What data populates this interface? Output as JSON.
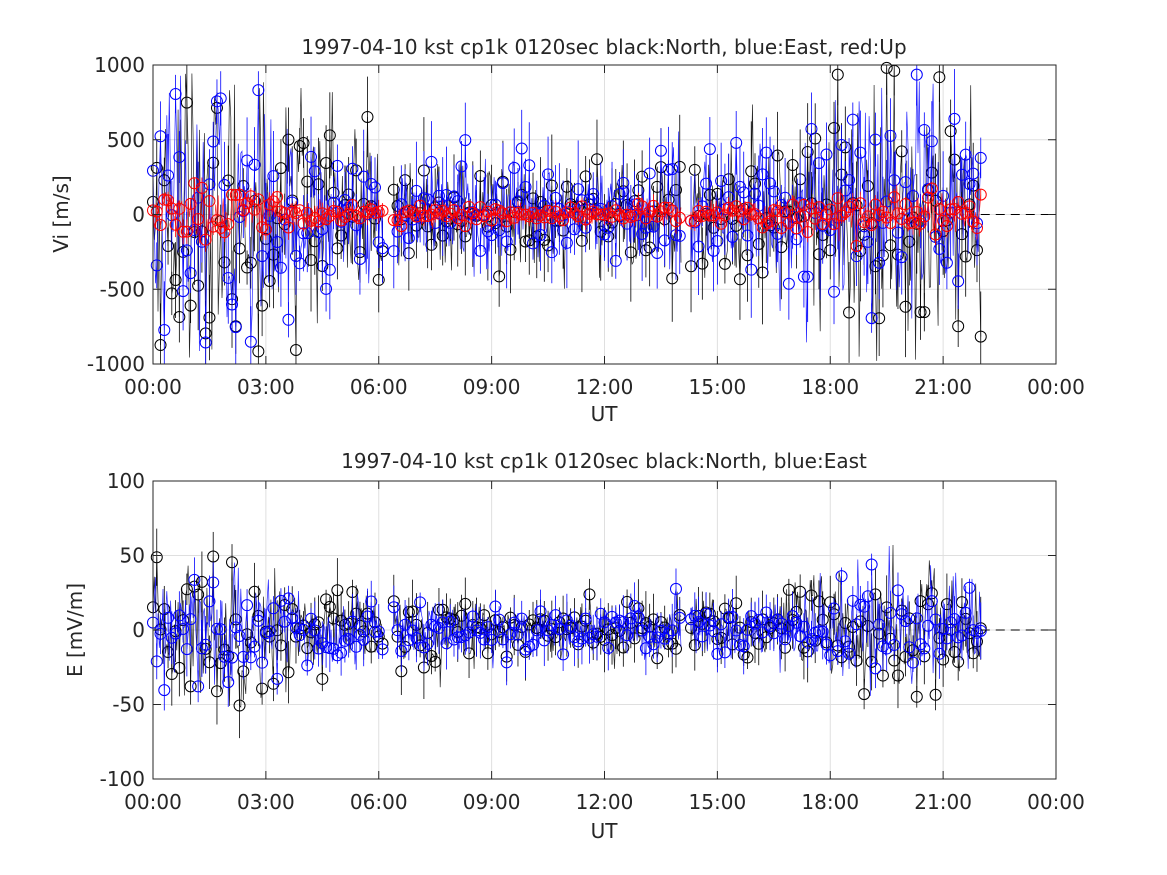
{
  "chart_data": [
    {
      "type": "scatter",
      "title": "1997-04-10 kst cp1k 0120sec black:North, blue:East, red:Up",
      "xlabel": "UT",
      "ylabel": "Vi [m/s]",
      "xlim": [
        0,
        24
      ],
      "ylim": [
        -1000,
        1000
      ],
      "x_tick_labels": [
        "00:00",
        "03:00",
        "06:00",
        "09:00",
        "12:00",
        "15:00",
        "18:00",
        "21:00",
        "00:00"
      ],
      "y_tick_labels": [
        "1000",
        "500",
        "0",
        "-500",
        "-1000"
      ],
      "y_ticks": [
        1000,
        500,
        0,
        -500,
        -1000
      ],
      "grid": true,
      "marker": "open-circle-with-errorbar",
      "zero_line": {
        "style": "dashed",
        "from_hour": 22.0,
        "to_hour": 24.0,
        "value": 0
      },
      "data_coverage_hours": [
        0.0,
        22.0
      ],
      "series": [
        {
          "key": "north",
          "color": "#000000",
          "amplitude": 420,
          "spike_max": 1000,
          "err": 260
        },
        {
          "key": "east",
          "color": "#0000ff",
          "amplitude": 400,
          "spike_max": 1000,
          "err": 240
        },
        {
          "key": "up",
          "color": "#ff0000",
          "amplitude": 80,
          "spike_max": 260,
          "err": 60
        }
      ]
    },
    {
      "type": "scatter",
      "title": "1997-04-10 kst cp1k 0120sec black:North, blue:East",
      "xlabel": "UT",
      "ylabel": "E [mV/m]",
      "xlim": [
        0,
        24
      ],
      "ylim": [
        -100,
        100
      ],
      "x_tick_labels": [
        "00:00",
        "03:00",
        "06:00",
        "09:00",
        "12:00",
        "15:00",
        "18:00",
        "21:00",
        "00:00"
      ],
      "y_tick_labels": [
        "100",
        "50",
        "0",
        "-50",
        "-100"
      ],
      "y_ticks": [
        100,
        50,
        0,
        -50,
        -100
      ],
      "grid": true,
      "marker": "open-circle-with-errorbar",
      "zero_line": {
        "style": "dashed",
        "from_hour": 22.0,
        "to_hour": 24.0,
        "value": 0
      },
      "data_coverage_hours": [
        0.0,
        22.0
      ],
      "series": [
        {
          "key": "north",
          "color": "#000000",
          "amplitude": 22,
          "spike_max": 75,
          "err": 16
        },
        {
          "key": "east",
          "color": "#0000ff",
          "amplitude": 18,
          "spike_max": 75,
          "err": 14
        }
      ]
    }
  ]
}
